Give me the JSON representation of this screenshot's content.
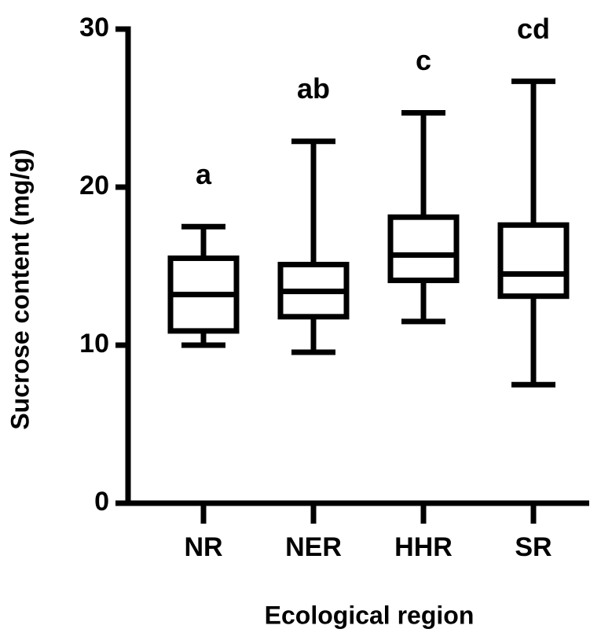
{
  "chart_data": {
    "type": "box",
    "xlabel": "Ecological region",
    "ylabel": "Sucrose content (mg/g)",
    "categories": [
      "NR",
      "NER",
      "HHR",
      "SR"
    ],
    "min": [
      10.0,
      9.55,
      11.5,
      7.5
    ],
    "q1": [
      10.9,
      11.8,
      14.1,
      13.1
    ],
    "median": [
      13.2,
      13.4,
      15.7,
      14.5
    ],
    "q3": [
      15.5,
      15.1,
      18.1,
      17.6
    ],
    "max": [
      17.5,
      22.9,
      24.7,
      26.7
    ],
    "annotations": [
      "a",
      "ab",
      "c",
      "cd"
    ],
    "color": "#000000",
    "ylim": [
      0,
      30
    ],
    "yticks": [
      0,
      10,
      20,
      30
    ]
  }
}
